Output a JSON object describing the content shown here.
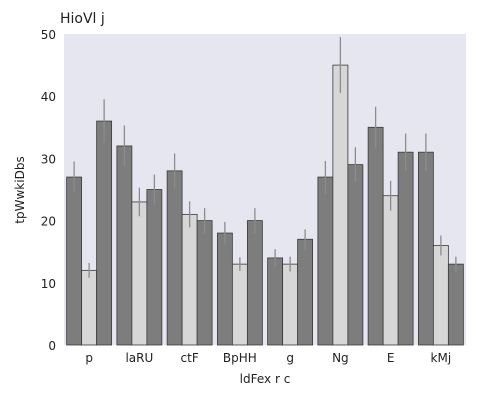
{
  "chart_data": {
    "type": "bar",
    "title": "HioVl j",
    "xlabel": "ldFex r c",
    "ylabel": "tpWwkiDbs",
    "ylim": [
      0,
      50
    ],
    "yticks": [
      0,
      10,
      20,
      30,
      40,
      50
    ],
    "categories": [
      "p",
      "laRU",
      "ctF",
      "BpHH",
      "g",
      "Ng",
      "E",
      "kMj"
    ],
    "series": [
      {
        "color": "#7d7d7d",
        "values": [
          27,
          32,
          28,
          18,
          14,
          27,
          35,
          31
        ],
        "errors": [
          2.5,
          3.3,
          2.8,
          1.8,
          1.4,
          2.6,
          3.3,
          3.0
        ]
      },
      {
        "color": "#d7d7d7",
        "values": [
          12,
          23,
          21,
          13,
          13,
          45,
          24,
          16
        ],
        "errors": [
          1.2,
          2.3,
          2.1,
          1.1,
          1.2,
          4.5,
          2.4,
          1.6
        ]
      },
      {
        "color": "#7d7d7d",
        "values": [
          36,
          25,
          20,
          20,
          17,
          29,
          31,
          13
        ],
        "errors": [
          3.5,
          2.4,
          2.0,
          2.0,
          1.6,
          2.8,
          3.0,
          1.2
        ]
      }
    ],
    "grid": false,
    "legend": "none",
    "plot_background": "#e6e6f0",
    "error_bar_color": "#8c8c8c"
  }
}
